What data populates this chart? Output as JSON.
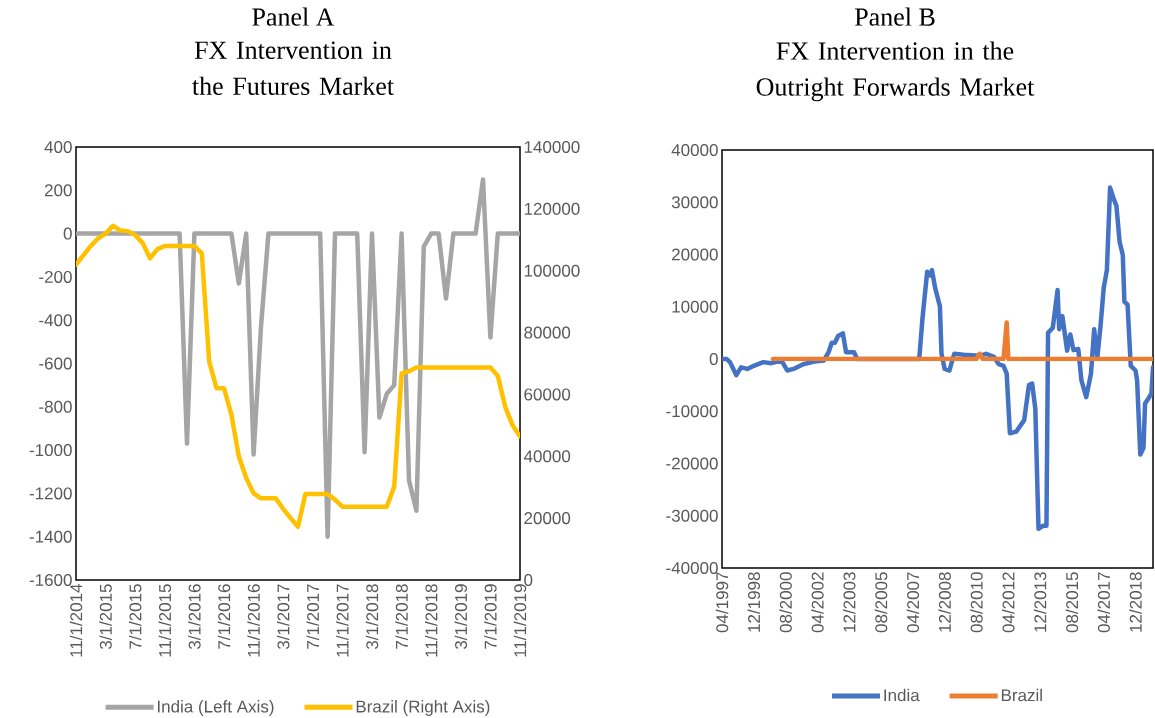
{
  "chart_data": [
    {
      "type": "line",
      "title": "Panel A",
      "subtitle": "FX Intervention in the Futures Market",
      "legend": "bottom",
      "x": [
        "2014-11",
        "2014-12",
        "2015-01",
        "2015-02",
        "2015-03",
        "2015-04",
        "2015-05",
        "2015-06",
        "2015-07",
        "2015-08",
        "2015-09",
        "2015-10",
        "2015-11",
        "2015-12",
        "2016-01",
        "2016-02",
        "2016-03",
        "2016-04",
        "2016-05",
        "2016-06",
        "2016-07",
        "2016-08",
        "2016-09",
        "2016-10",
        "2016-11",
        "2016-12",
        "2017-01",
        "2017-02",
        "2017-03",
        "2017-04",
        "2017-05",
        "2017-06",
        "2017-07",
        "2017-08",
        "2017-09",
        "2017-10",
        "2017-11",
        "2017-12",
        "2018-01",
        "2018-02",
        "2018-03",
        "2018-04",
        "2018-05",
        "2018-06",
        "2018-07",
        "2018-08",
        "2018-09",
        "2018-10",
        "2018-11",
        "2018-12",
        "2019-01",
        "2019-02",
        "2019-03",
        "2019-04",
        "2019-05",
        "2019-06",
        "2019-07",
        "2019-08",
        "2019-09",
        "2019-10",
        "2019-11"
      ],
      "xlim": [
        "2014-11",
        "2019-11"
      ],
      "xticks": [
        {
          "value": "2014-11",
          "label": "11/1/2014"
        },
        {
          "value": "2015-03",
          "label": "3/1/2015"
        },
        {
          "value": "2015-07",
          "label": "7/1/2015"
        },
        {
          "value": "2015-11",
          "label": "11/1/2015"
        },
        {
          "value": "2016-03",
          "label": "3/1/2016"
        },
        {
          "value": "2016-07",
          "label": "7/1/2016"
        },
        {
          "value": "2016-11",
          "label": "11/1/2016"
        },
        {
          "value": "2017-03",
          "label": "3/1/2017"
        },
        {
          "value": "2017-07",
          "label": "7/1/2017"
        },
        {
          "value": "2017-11",
          "label": "11/1/2017"
        },
        {
          "value": "2018-03",
          "label": "3/1/2018"
        },
        {
          "value": "2018-07",
          "label": "7/1/2018"
        },
        {
          "value": "2018-11",
          "label": "11/1/2018"
        },
        {
          "value": "2019-03",
          "label": "3/1/2019"
        },
        {
          "value": "2019-07",
          "label": "7/1/2019"
        },
        {
          "value": "2019-11",
          "label": "11/1/2019"
        }
      ],
      "ylim": [
        -1600,
        400
      ],
      "yticks": [
        -1600,
        -1400,
        -1200,
        -1000,
        -800,
        -600,
        -400,
        -200,
        0,
        200,
        400
      ],
      "y2lim": [
        0,
        140000
      ],
      "y2ticks": [
        0,
        20000,
        40000,
        60000,
        80000,
        100000,
        120000,
        140000
      ],
      "series": [
        {
          "name": "India (Left Axis)",
          "color": "#a5a5a5",
          "values": [
            0,
            0,
            0,
            0,
            0,
            0,
            0,
            0,
            0,
            0,
            0,
            0,
            0,
            0,
            0,
            -970,
            0,
            0,
            0,
            0,
            0,
            0,
            -230,
            0,
            -1020,
            -430,
            0,
            0,
            0,
            0,
            0,
            0,
            0,
            0,
            -1400,
            0,
            0,
            0,
            0,
            -1010,
            0,
            -850,
            -740,
            -700,
            0,
            -1140,
            -1280,
            -60,
            0,
            0,
            -300,
            0,
            0,
            0,
            0,
            250,
            -480,
            0,
            0,
            0,
            0
          ]
        },
        {
          "name": "Brazil (Right Axis)",
          "color": "#ffc000",
          "axis": "y2",
          "values": [
            102000,
            105000,
            108000,
            110500,
            112000,
            114500,
            113000,
            112800,
            111500,
            109000,
            104000,
            107000,
            108000,
            108000,
            108000,
            108000,
            108000,
            105600,
            70600,
            62000,
            62000,
            53500,
            40000,
            33000,
            28000,
            26400,
            26400,
            26400,
            23000,
            20000,
            17200,
            27800,
            27800,
            27800,
            27800,
            26000,
            23700,
            23700,
            23700,
            23700,
            23700,
            23700,
            23700,
            30200,
            66800,
            67500,
            68700,
            68700,
            68700,
            68700,
            68700,
            68700,
            68700,
            68700,
            68700,
            68700,
            68700,
            66000,
            56000,
            50000,
            46400
          ]
        }
      ]
    },
    {
      "type": "line",
      "title": "Panel B",
      "subtitle": "FX Intervention in the Outright Forwards Market",
      "legend": "bottom",
      "xlim": [
        "1997-04",
        "2019-11"
      ],
      "xticks": [
        {
          "value": "1997-04",
          "label": "04/1997"
        },
        {
          "value": "1998-12",
          "label": "12/1998"
        },
        {
          "value": "2000-08",
          "label": "08/2000"
        },
        {
          "value": "2002-04",
          "label": "04/2002"
        },
        {
          "value": "2003-12",
          "label": "12/2003"
        },
        {
          "value": "2005-08",
          "label": "08/2005"
        },
        {
          "value": "2007-04",
          "label": "04/2007"
        },
        {
          "value": "2008-12",
          "label": "12/2008"
        },
        {
          "value": "2010-08",
          "label": "08/2010"
        },
        {
          "value": "2012-04",
          "label": "04/2012"
        },
        {
          "value": "2013-12",
          "label": "12/2013"
        },
        {
          "value": "2015-08",
          "label": "08/2015"
        },
        {
          "value": "2017-04",
          "label": "04/2017"
        },
        {
          "value": "2018-12",
          "label": "12/2018"
        }
      ],
      "ylim": [
        -40000,
        40000
      ],
      "yticks": [
        -40000,
        -30000,
        -20000,
        -10000,
        0,
        10000,
        20000,
        30000,
        40000
      ],
      "series": [
        {
          "name": "India",
          "color": "#4472c4",
          "x": [
            "1997-04",
            "1997-07",
            "1997-09",
            "1998-01",
            "1998-04",
            "1998-08",
            "1998-12",
            "1999-06",
            "1999-11",
            "2000-03",
            "2000-06",
            "2000-09",
            "2001-01",
            "2001-07",
            "2002-02",
            "2002-08",
            "2002-11",
            "2003-01",
            "2003-03",
            "2003-05",
            "2003-08",
            "2003-10",
            "2004-03",
            "2004-05",
            "2007-08",
            "2007-10",
            "2008-01",
            "2008-03",
            "2008-04",
            "2008-06",
            "2008-09",
            "2008-10",
            "2008-12",
            "2009-03",
            "2009-06",
            "2009-12",
            "2010-10",
            "2011-02",
            "2011-07",
            "2011-10",
            "2012-01",
            "2012-03",
            "2012-05",
            "2012-09",
            "2013-02",
            "2013-05",
            "2013-07",
            "2013-09",
            "2013-11",
            "2014-02",
            "2014-04",
            "2014-05",
            "2014-08",
            "2014-11",
            "2014-12",
            "2015-02",
            "2015-05",
            "2015-07",
            "2015-09",
            "2015-12",
            "2016-02",
            "2016-05",
            "2016-08",
            "2016-10",
            "2016-12",
            "2017-02",
            "2017-04",
            "2017-06",
            "2017-08",
            "2017-10",
            "2017-12",
            "2018-02",
            "2018-04",
            "2018-05",
            "2018-07",
            "2018-09",
            "2018-12",
            "2019-01",
            "2019-03",
            "2019-05",
            "2019-06",
            "2019-08",
            "2019-10",
            "2019-11"
          ],
          "values": [
            0,
            0,
            -600,
            -3100,
            -1600,
            -1900,
            -1300,
            -600,
            -800,
            -500,
            -600,
            -2200,
            -1900,
            -1000,
            -500,
            -300,
            1300,
            3100,
            3100,
            4400,
            4900,
            1300,
            1300,
            0,
            0,
            7600,
            16700,
            16000,
            17000,
            13600,
            10100,
            1000,
            -1900,
            -2200,
            1000,
            800,
            600,
            1000,
            400,
            -1000,
            -1300,
            -2800,
            -14200,
            -13900,
            -11700,
            -5000,
            -4700,
            -9500,
            -32500,
            -31900,
            -31900,
            5000,
            6000,
            13200,
            5700,
            8200,
            1600,
            4700,
            1700,
            1900,
            -4100,
            -7300,
            -2800,
            5700,
            300,
            6300,
            13600,
            17000,
            32800,
            30900,
            29300,
            22400,
            19900,
            11000,
            10400,
            -1300,
            -2200,
            -4100,
            -18300,
            -17000,
            -8500,
            -7600,
            -6600,
            -1600
          ]
        },
        {
          "name": "Brazil",
          "color": "#ed7d31",
          "x": [
            "1999-12",
            "2010-08",
            "2010-10",
            "2010-12",
            "2012-01",
            "2012-03",
            "2012-04",
            "2019-11"
          ],
          "values": [
            0,
            0,
            1000,
            0,
            0,
            7000,
            0,
            0
          ]
        }
      ]
    }
  ]
}
